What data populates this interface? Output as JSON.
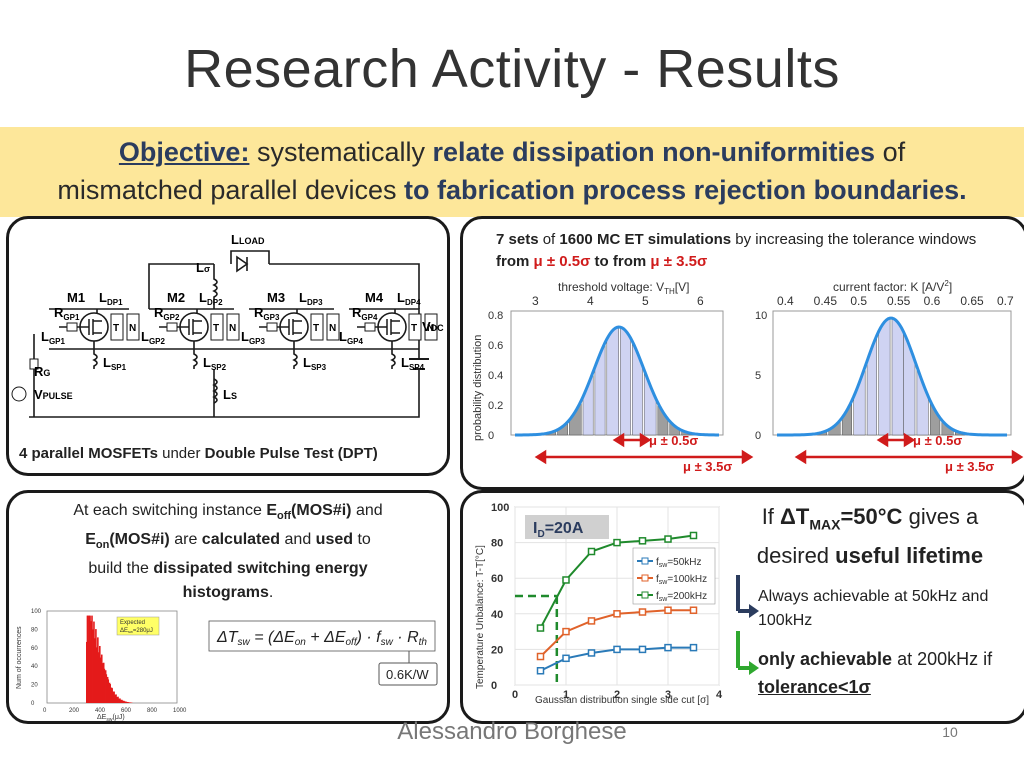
{
  "title": "Research Activity - Results",
  "objective": {
    "label": "Objective:",
    "t1": "systematically",
    "b1": "relate dissipation non-uniformities",
    "t2": "of",
    "t3": "mismatched parallel devices",
    "b2": "to fabrication process rejection boundaries."
  },
  "circuit": {
    "caption_b1": "4 parallel MOSFETs",
    "caption_t1": "under",
    "caption_b2": "Double Pulse Test (DPT)",
    "load": "LOAD",
    "lsigma": "σ",
    "mosfets": [
      "M1",
      "M2",
      "M3",
      "M4"
    ],
    "ldp": [
      "DP1",
      "DP2",
      "DP3",
      "DP4"
    ],
    "rgp": [
      "GP1",
      "GP2",
      "GP3",
      "GP4"
    ],
    "lgp": [
      "GP1",
      "GP2",
      "GP3",
      "GP4"
    ],
    "lsp": [
      "SP1",
      "SP2",
      "SP3",
      "SP4"
    ],
    "t": "T",
    "n": "N",
    "vdc": "DC",
    "rg": "G",
    "vpulse": "PULSE",
    "ls": "S"
  },
  "mc": {
    "t1": "7 sets",
    "t2": "of",
    "t3": "1600 MC ET simulations",
    "t4": "by increasing the tolerance",
    "t5": "windows",
    "t6": "from",
    "t7": "μ ± 0.5σ",
    "t8": "to from",
    "t9": "μ ± 3.5σ",
    "left_top_label": "threshold voltage: V",
    "left_top_sub": "TH",
    "left_top_unit": "[V]",
    "left_top_ticks": [
      "3",
      "4",
      "5",
      "6"
    ],
    "left_y_label": "probability distribution",
    "left_y_ticks": [
      "0.8",
      "0.6",
      "0.4",
      "0.2",
      "0"
    ],
    "right_top_label": "current factor: K [A/V",
    "right_top_sup": "2",
    "right_top_close": "]",
    "right_top_ticks": [
      "0.4",
      "0.45",
      "0.5",
      "0.55",
      "0.6",
      "0.65",
      "0.7"
    ],
    "right_y_ticks": [
      "10",
      "5",
      "0"
    ],
    "band_small": "μ ± 0.5σ",
    "band_large": "μ ± 3.5σ"
  },
  "histogram": {
    "t1": "At each switching instance",
    "eoff": "E",
    "eoff_sub": "off",
    "mos": "(MOS#i)",
    "t2": "and",
    "eon": "E",
    "eon_sub": "on",
    "t3": "are",
    "calc": "calculated",
    "t4": "and",
    "used": "used",
    "t5": "to",
    "t6": "build the",
    "dse": "dissipated switching energy",
    "hist": "histograms",
    "dot": ".",
    "y_label": "Num of occurrences",
    "y_ticks": [
      "100",
      "80",
      "60",
      "40",
      "20",
      "0"
    ],
    "x_ticks": [
      "0",
      "200",
      "400",
      "600",
      "800",
      "1000"
    ],
    "x_label": "ΔE",
    "x_label_sub": "sw",
    "x_label_unit": "(μJ)",
    "legend": "Expected",
    "legend2": "ΔE",
    "legend2_sub": "sw",
    "legend2_rest": "=280μJ",
    "rth": "0.6K/W"
  },
  "temp": {
    "id": "I",
    "id_sub": "D",
    "id_val": "=20A",
    "y_label": "Temperature Unbalance: T",
    "y_label_rest": "-T",
    "y_label_unit": "[°C]",
    "y_ticks": [
      "100",
      "80",
      "60",
      "40",
      "20",
      "0"
    ],
    "x_ticks": [
      "0",
      "1",
      "2",
      "3",
      "4"
    ],
    "x_label": "Gaussian distribution single side cut [σ]",
    "legend": [
      "f   =50kHz",
      "f   =100kHz",
      "f   =200kHz"
    ],
    "legend_sub": "sw",
    "colors": {
      "s50": "#2a7ab8",
      "s100": "#e0622a",
      "s200": "#1f8a2c"
    },
    "if": "If",
    "dt": "ΔT",
    "dt_sub": "MAX",
    "dt_val": "=50°C",
    "gives": "gives a",
    "desired": "desired",
    "useful": "useful lifetime",
    "always": "Always achievable at 50kHz and 100kHz",
    "only": "only achievable",
    "only_rest": "at 200kHz if",
    "tol": "tolerance<1σ"
  },
  "chart_data": {
    "type": "line",
    "title": "",
    "xlabel": "Gaussian distribution single side cut [σ]",
    "ylabel": "Temperature Unbalance: Tmax-Tmin [°C]",
    "x": [
      0.5,
      1.0,
      1.5,
      2.0,
      2.5,
      3.0,
      3.5
    ],
    "series": [
      {
        "name": "fsw=50kHz",
        "values": [
          8,
          15,
          18,
          20,
          20,
          21,
          21
        ]
      },
      {
        "name": "fsw=100kHz",
        "values": [
          16,
          30,
          36,
          40,
          41,
          42,
          42
        ]
      },
      {
        "name": "fsw=200kHz",
        "values": [
          32,
          59,
          75,
          80,
          81,
          82,
          84
        ]
      }
    ],
    "xlim": [
      0,
      4
    ],
    "ylim": [
      0,
      100
    ],
    "threshold": 50
  },
  "footer": {
    "author": "Alessandro Borghese",
    "page": "10"
  }
}
